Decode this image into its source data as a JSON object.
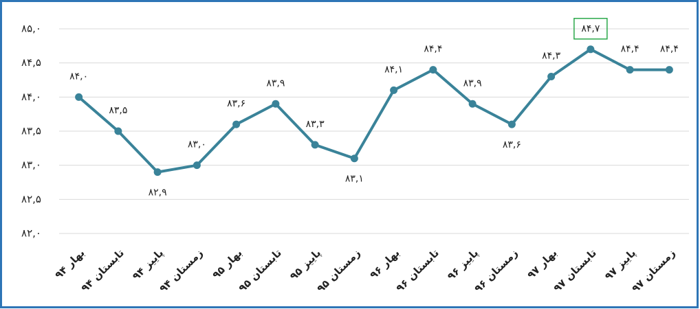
{
  "chart_data": {
    "type": "line",
    "categories": [
      "بهار ۹۴",
      "تابستان ۹۴",
      "پاییز ۹۴",
      "زمستان ۹۴",
      "بهار ۹۵",
      "تابستان ۹۵",
      "پاییز ۹۵",
      "زمستان ۹۵",
      "بهار ۹۶",
      "تابستان ۹۶",
      "پاییز ۹۶",
      "زمستان ۹۶",
      "بهار ۹۷",
      "تابستان ۹۷",
      "پاییز ۹۷",
      "زمستان ۹۷"
    ],
    "series": [
      {
        "color": "#3a8399",
        "values": [
          84.0,
          83.5,
          82.9,
          83.0,
          83.6,
          83.9,
          83.3,
          83.1,
          84.1,
          84.4,
          83.9,
          83.6,
          84.3,
          84.7,
          84.4,
          84.4
        ],
        "value_labels": [
          "۸۴,۰",
          "۸۳,۵",
          "۸۲,۹",
          "۸۳,۰",
          "۸۳,۶",
          "۸۳,۹",
          "۸۳,۳",
          "۸۳,۱",
          "۸۴,۱",
          "۸۴,۴",
          "۸۳,۹",
          "۸۳,۶",
          "۸۴,۳",
          "۸۴,۷",
          "۸۴,۴",
          "۸۴,۴"
        ]
      }
    ],
    "ylim": [
      82,
      85
    ],
    "yticks": [
      {
        "value": 82,
        "label": "۸۲,۰"
      },
      {
        "value": 82.5,
        "label": "۸۲,۵"
      },
      {
        "value": 83,
        "label": "۸۳,۰"
      },
      {
        "value": 83.5,
        "label": "۸۳,۵"
      },
      {
        "value": 84,
        "label": "۸۴,۰"
      },
      {
        "value": 84.5,
        "label": "۸۴,۵"
      },
      {
        "value": 85,
        "label": "۸۵,۰"
      }
    ],
    "grid": true
  }
}
